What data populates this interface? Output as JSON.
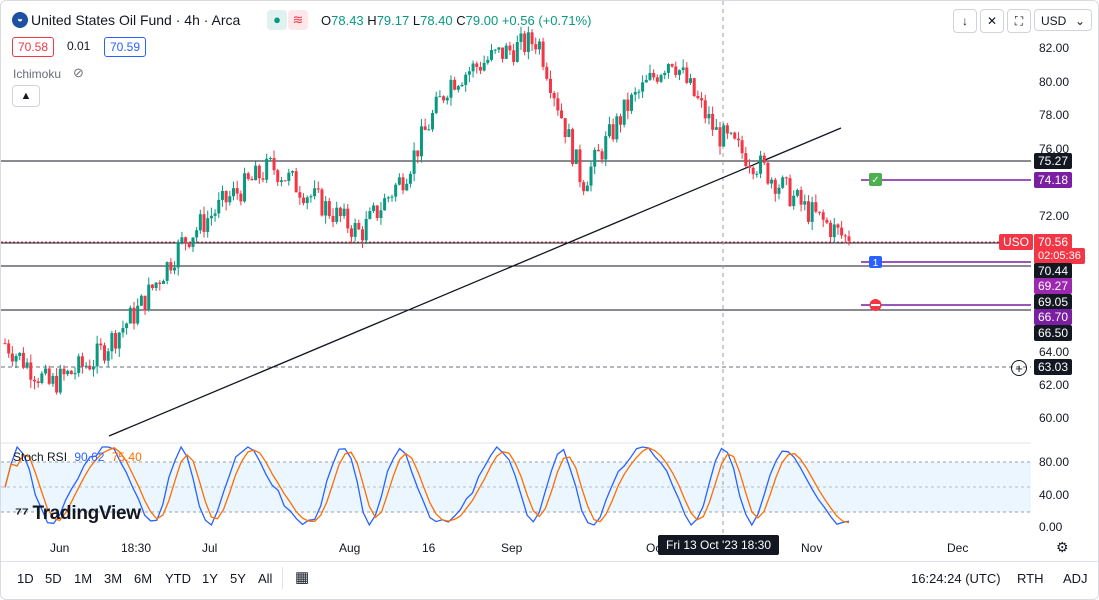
{
  "header": {
    "title": "United States Oil Fund · 4h · Arca",
    "ohlc": {
      "o_label": "O",
      "o": "78.43",
      "h_label": "H",
      "h": "79.17",
      "l_label": "L",
      "l": "78.40",
      "c_label": "C",
      "c": "79.00",
      "change": "+0.56 (+0.71%)"
    },
    "bid": "70.58",
    "spread": "0.01",
    "ask": "70.59",
    "indicator": "Ichimoku",
    "currency": "USD"
  },
  "price_axis": {
    "ticks": [
      "82.00",
      "80.00",
      "78.00",
      "76.00",
      "72.00",
      "64.00",
      "62.00",
      "60.00"
    ],
    "labels": {
      "l7527": "75.27",
      "l7418": "74.18",
      "l7056": "70.56",
      "countdown": "02:05:36",
      "uso": "USO",
      "l7044": "70.44",
      "l6927": "69.27",
      "l6905": "69.05",
      "l6670": "66.70",
      "l6650": "66.50",
      "l6303": "63.03"
    }
  },
  "stoch": {
    "name": "Stoch RSI",
    "k": "90.62",
    "d": "75.40",
    "ticks": [
      "80.00",
      "40.00",
      "0.00"
    ]
  },
  "time_axis": {
    "months": [
      "Jun",
      "18:30",
      "Jul",
      "Aug",
      "16",
      "Sep",
      "Oc",
      "Nov",
      "Dec"
    ],
    "crosshair": "Fri 13 Oct '23   18:30"
  },
  "branding": "TradingView",
  "timeframes": [
    "1D",
    "5D",
    "1M",
    "3M",
    "6M",
    "YTD",
    "1Y",
    "5Y",
    "All"
  ],
  "bottom_right": {
    "clock": "16:24:24 (UTC)",
    "session": "RTH",
    "adj": "ADJ"
  },
  "chart_data": {
    "type": "candlestick",
    "symbol": "USO",
    "interval": "4h",
    "price_range": [
      58.5,
      84.0
    ],
    "approx_close_path": [
      {
        "t": "Jun",
        "close": 64.5
      },
      {
        "t": "Jun 18:30",
        "close": 62.0
      },
      {
        "t": "Jul",
        "close": 63.5
      },
      {
        "t": "Jul mid",
        "close": 66.5
      },
      {
        "t": "Jul late",
        "close": 70.5
      },
      {
        "t": "Aug",
        "close": 73.0
      },
      {
        "t": "Aug 10",
        "close": 75.0
      },
      {
        "t": "Aug 16",
        "close": 73.0
      },
      {
        "t": "Aug late",
        "close": 71.0
      },
      {
        "t": "Sep",
        "close": 74.5
      },
      {
        "t": "Sep mid",
        "close": 80.0
      },
      {
        "t": "Sep late",
        "close": 81.5
      },
      {
        "t": "Oct",
        "close": 82.5
      },
      {
        "t": "Oct 6",
        "close": 74.0
      },
      {
        "t": "Oct 13",
        "close": 78.5
      },
      {
        "t": "Oct 20",
        "close": 81.5
      },
      {
        "t": "Oct 25",
        "close": 77.0
      },
      {
        "t": "Oct 30",
        "close": 75.0
      },
      {
        "t": "Nov 3",
        "close": 72.5
      },
      {
        "t": "Nov 6",
        "close": 70.56
      }
    ],
    "horizontal_levels": [
      75.27,
      70.56,
      70.44,
      66.7,
      63.03
    ],
    "trendline": {
      "from": {
        "t": "Jun 18:30",
        "price": 59.3
      },
      "to": {
        "t": "Nov",
        "price": 77.2
      }
    },
    "order_levels": [
      74.18,
      70.44,
      69.05
    ],
    "stoch_rsi": {
      "k": 90.62,
      "d": 75.4,
      "upper": 80,
      "lower": 20
    }
  },
  "colors": {
    "up": "#089981",
    "down": "#f23645",
    "accent": "#2962ff",
    "purple": "#7b1fa2",
    "label_dark": "#131722"
  }
}
